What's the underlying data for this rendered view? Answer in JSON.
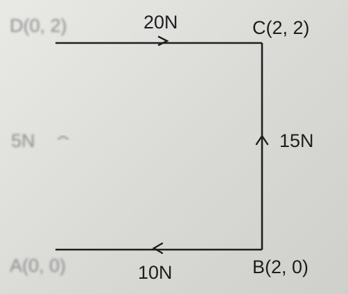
{
  "points": {
    "A": {
      "label": "A(0, 0)"
    },
    "B": {
      "label": "B(2, 0)"
    },
    "C": {
      "label": "C(2, 2)"
    },
    "D": {
      "label": "D(0, 2)"
    }
  },
  "forces": {
    "AB": {
      "label": "10N"
    },
    "BC": {
      "label": "15N"
    },
    "CD": {
      "label": "20N"
    },
    "DA": {
      "label": "5N"
    }
  }
}
